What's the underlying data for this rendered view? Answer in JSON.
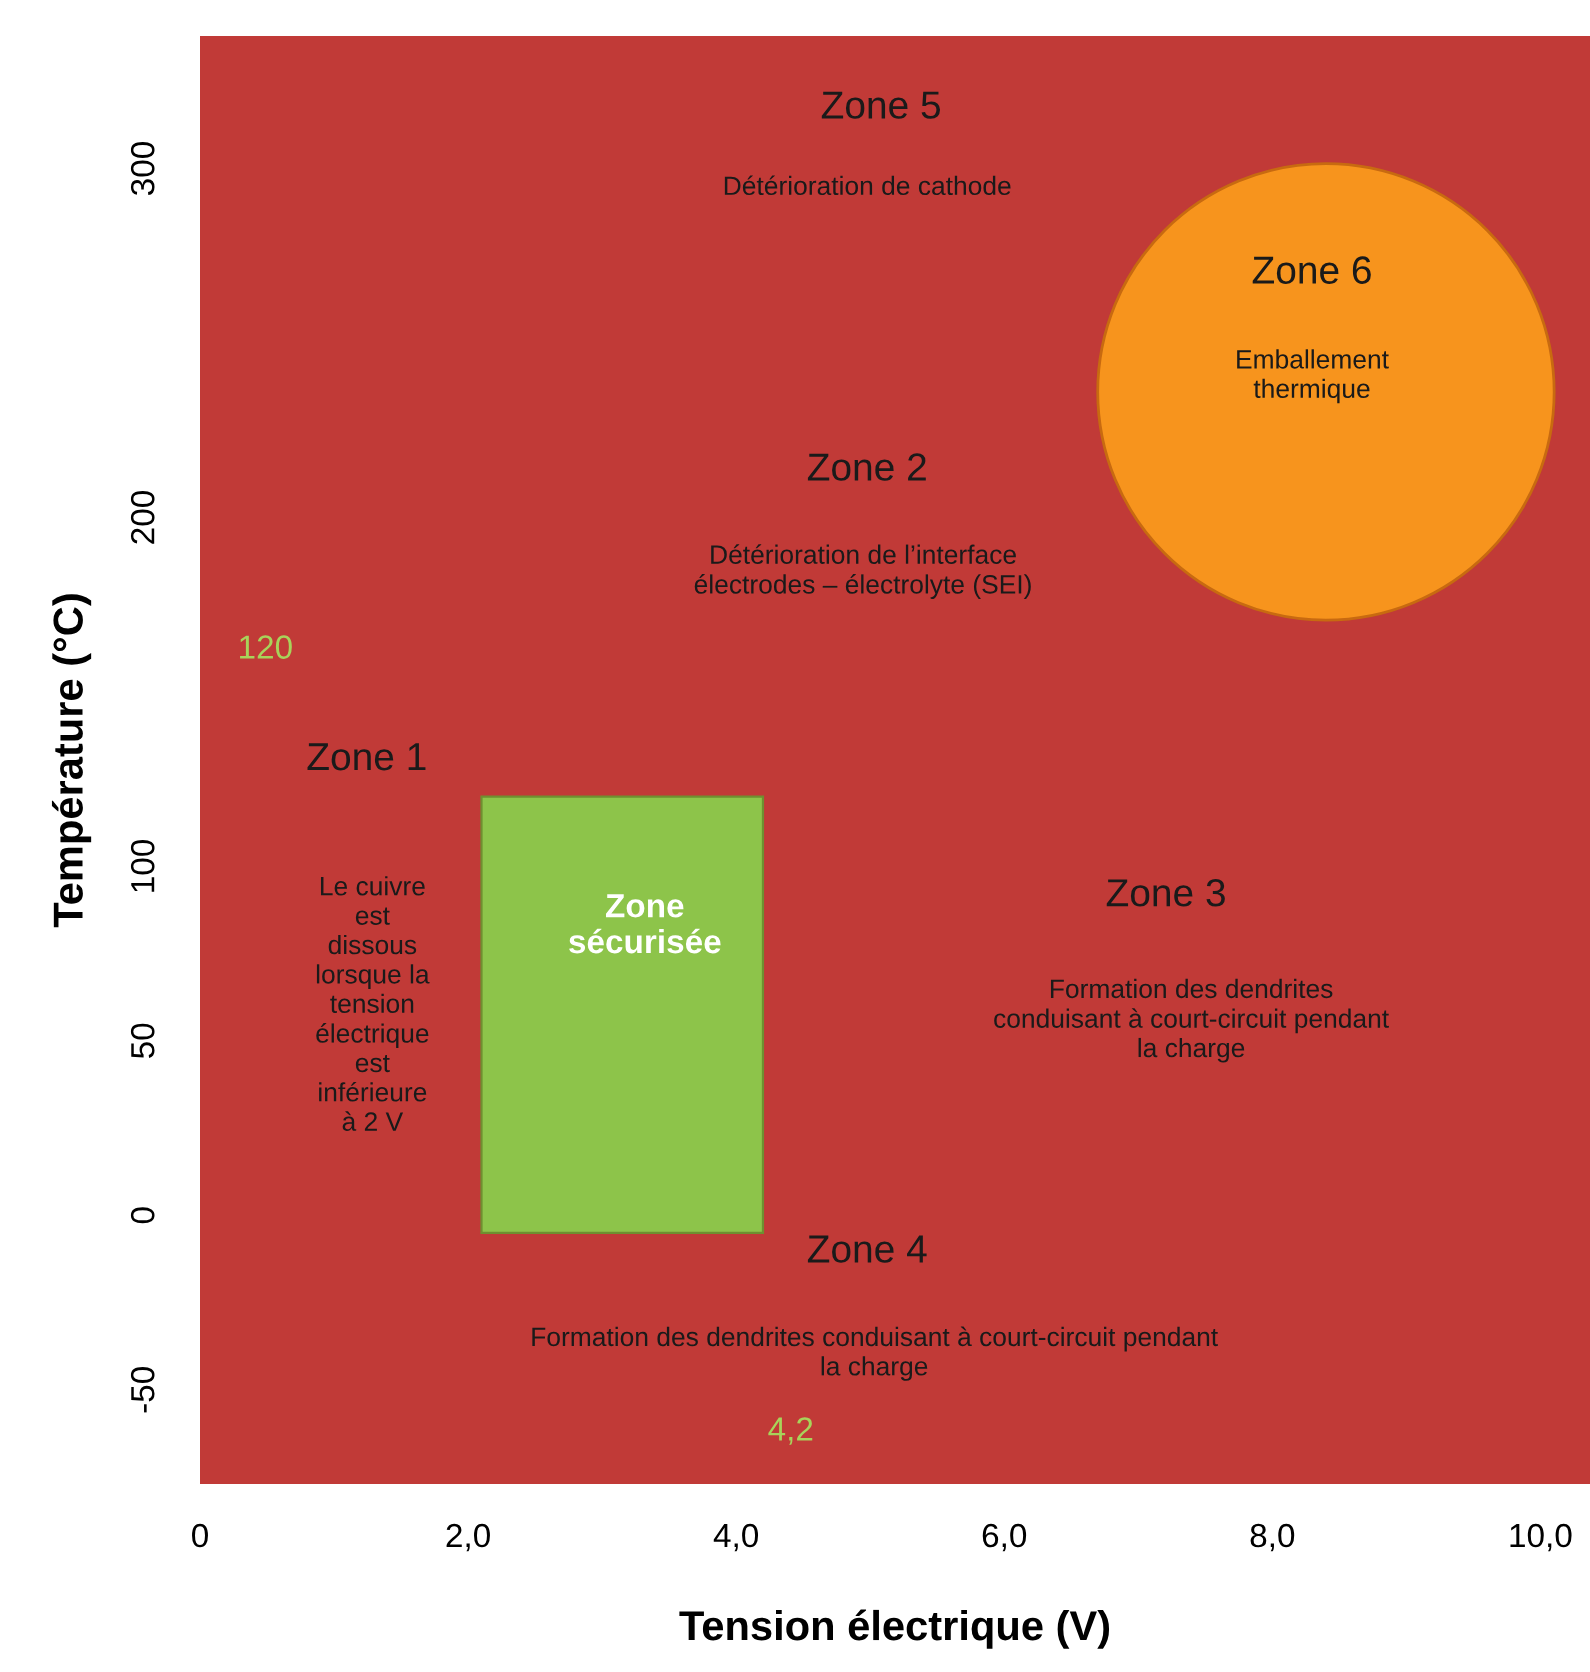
{
  "chart_data": {
    "type": "bubble",
    "xlabel": "Tension électrique (V)",
    "ylabel": "Température (°C)",
    "xlim": [
      0,
      10.37
    ],
    "ylim": [
      -77,
      338
    ],
    "xticks": [
      {
        "value": 0,
        "label": "0"
      },
      {
        "value": 2,
        "label": "2,0"
      },
      {
        "value": 4,
        "label": "4,0"
      },
      {
        "value": 6,
        "label": "6,0"
      },
      {
        "value": 8,
        "label": "8,0"
      },
      {
        "value": 10,
        "label": "10,0"
      }
    ],
    "yticks": [
      -50,
      0,
      50,
      100,
      200,
      300
    ],
    "series": [
      {
        "type": "bar",
        "color": "#8dc44a",
        "x": [
          3.15
        ],
        "base": [
          -5
        ],
        "values": [
          125
        ]
      },
      {
        "type": "bubble",
        "color": "#f7941d",
        "x": [
          8.4
        ],
        "values": [
          236
        ],
        "sizes": [
          1
        ]
      }
    ],
    "annotations": [
      "Zone 5",
      "Détérioration de cathode",
      "Zone 6",
      "Emballement\nthermique",
      "Zone 2",
      "Détérioration de l’interface\nélectrodes – électrolyte (SEI)",
      "120",
      "Zone 1",
      "Le cuivre\nest\ndissous\nlorsque la\ntension\nélectrique\nest\ninférieure\nà 2 V",
      "Zone\nsécurisée",
      "Zone 3",
      "Formation des dendrites\nconduisant à court-circuit pendant\nla charge",
      "Zone 4",
      "Formation des dendrites conduisant à court-circuit pendant\nla charge",
      "4,2"
    ]
  }
}
